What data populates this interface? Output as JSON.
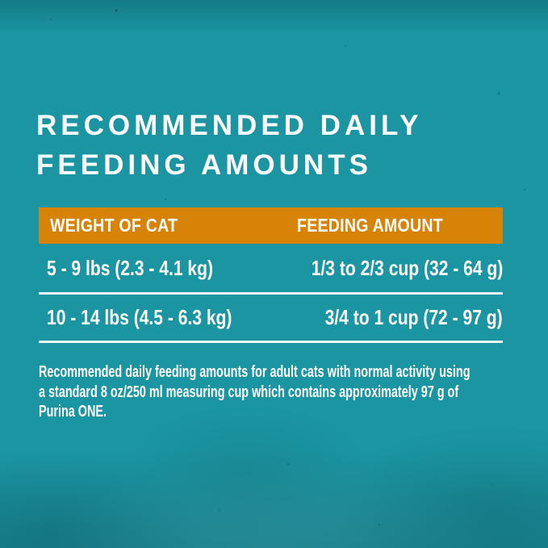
{
  "theme": {
    "background_teal": "#1b95a2",
    "header_orange": "#d68307",
    "divider_white": "#f2f8f7",
    "text_white": "#fdfdfd"
  },
  "title": "RECOMMENDED DAILY FEEDING AMOUNTS",
  "table": {
    "columns": [
      "WEIGHT OF CAT",
      "FEEDING AMOUNT"
    ],
    "rows": [
      {
        "weight": "5 - 9 lbs (2.3 - 4.1 kg)",
        "amount": "1/3 to 2/3 cup (32 - 64 g)"
      },
      {
        "weight": "10 - 14 lbs (4.5 - 6.3 kg)",
        "amount": "3/4 to 1 cup (72 - 97 g)"
      }
    ]
  },
  "footnote": {
    "lines": [
      "Recommended daily feeding amounts for adult cats with normal activity using",
      "a standard 8 oz/250 ml measuring cup which contains approximately 97 g of",
      "Purina ONE."
    ]
  }
}
